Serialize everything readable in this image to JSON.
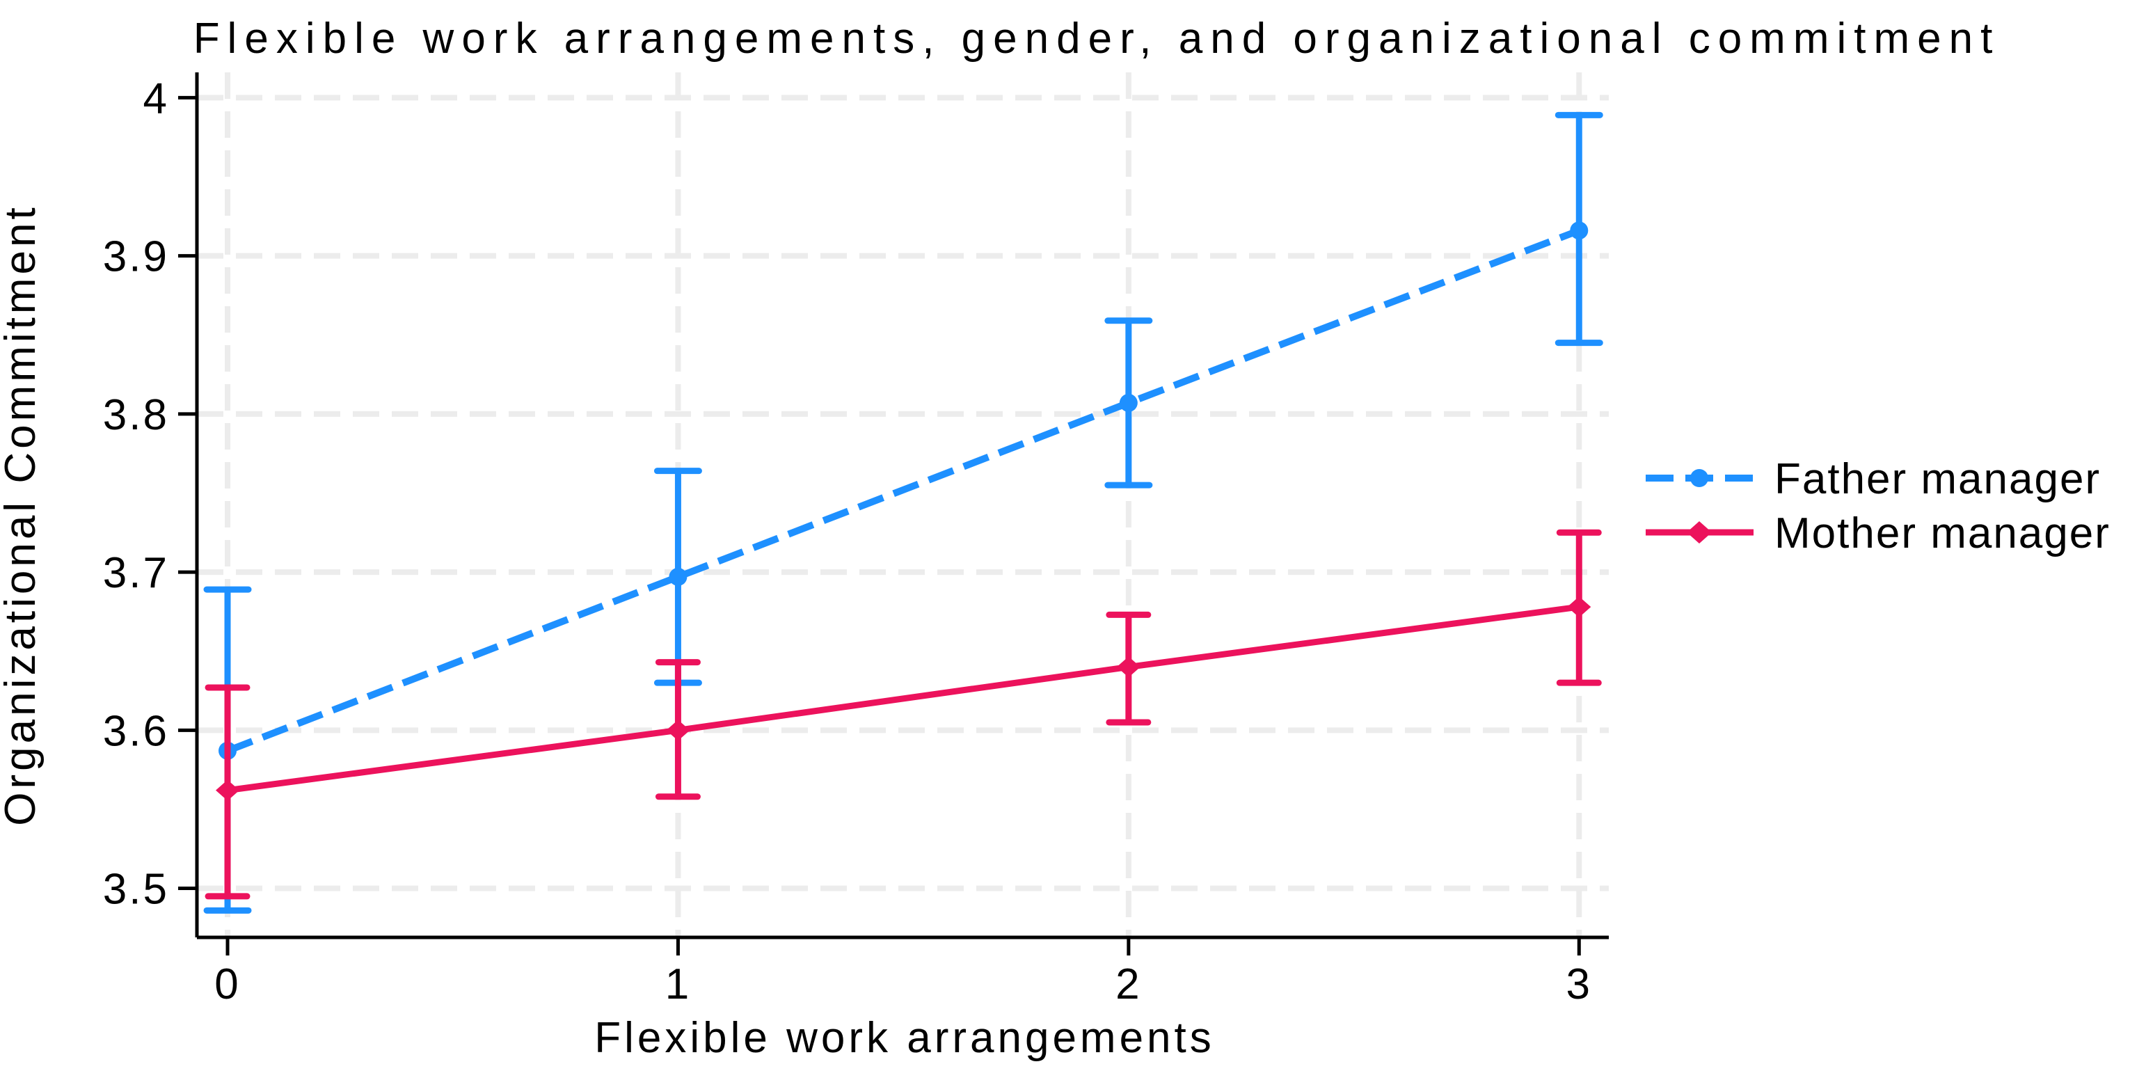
{
  "chart_data": {
    "type": "line",
    "title": "Flexible work arrangements, gender, and organizational commitment",
    "xlabel": "Flexible work arrangements",
    "ylabel": "Organizational Commitment",
    "x": [
      0,
      1,
      2,
      3
    ],
    "xtick_labels": [
      "0",
      "1",
      "2",
      "3"
    ],
    "ytick_values": [
      3.5,
      3.6,
      3.7,
      3.8,
      3.9,
      4.0
    ],
    "ytick_labels": [
      "3.5",
      "3.6",
      "3.7",
      "3.8",
      "3.9",
      "4"
    ],
    "xlim": [
      -0.068,
      3.066
    ],
    "ylim": [
      3.469,
      4.016
    ],
    "grid": true,
    "grid_color": "#ECECEC",
    "axis_color": "#000000",
    "legend_position": "right-outside",
    "series": [
      {
        "name": "Father manager",
        "color": "#1E90FF",
        "line_style": "dashed",
        "marker": "circle",
        "values": [
          3.587,
          3.697,
          3.807,
          3.916
        ],
        "ci_low": [
          3.486,
          3.63,
          3.755,
          3.845
        ],
        "ci_high": [
          3.689,
          3.764,
          3.859,
          3.989
        ]
      },
      {
        "name": "Mother manager",
        "color": "#EC125C",
        "line_style": "solid",
        "marker": "diamond",
        "values": [
          3.562,
          3.6,
          3.64,
          3.678
        ],
        "ci_low": [
          3.495,
          3.558,
          3.605,
          3.63
        ],
        "ci_high": [
          3.627,
          3.643,
          3.673,
          3.725
        ]
      }
    ]
  }
}
